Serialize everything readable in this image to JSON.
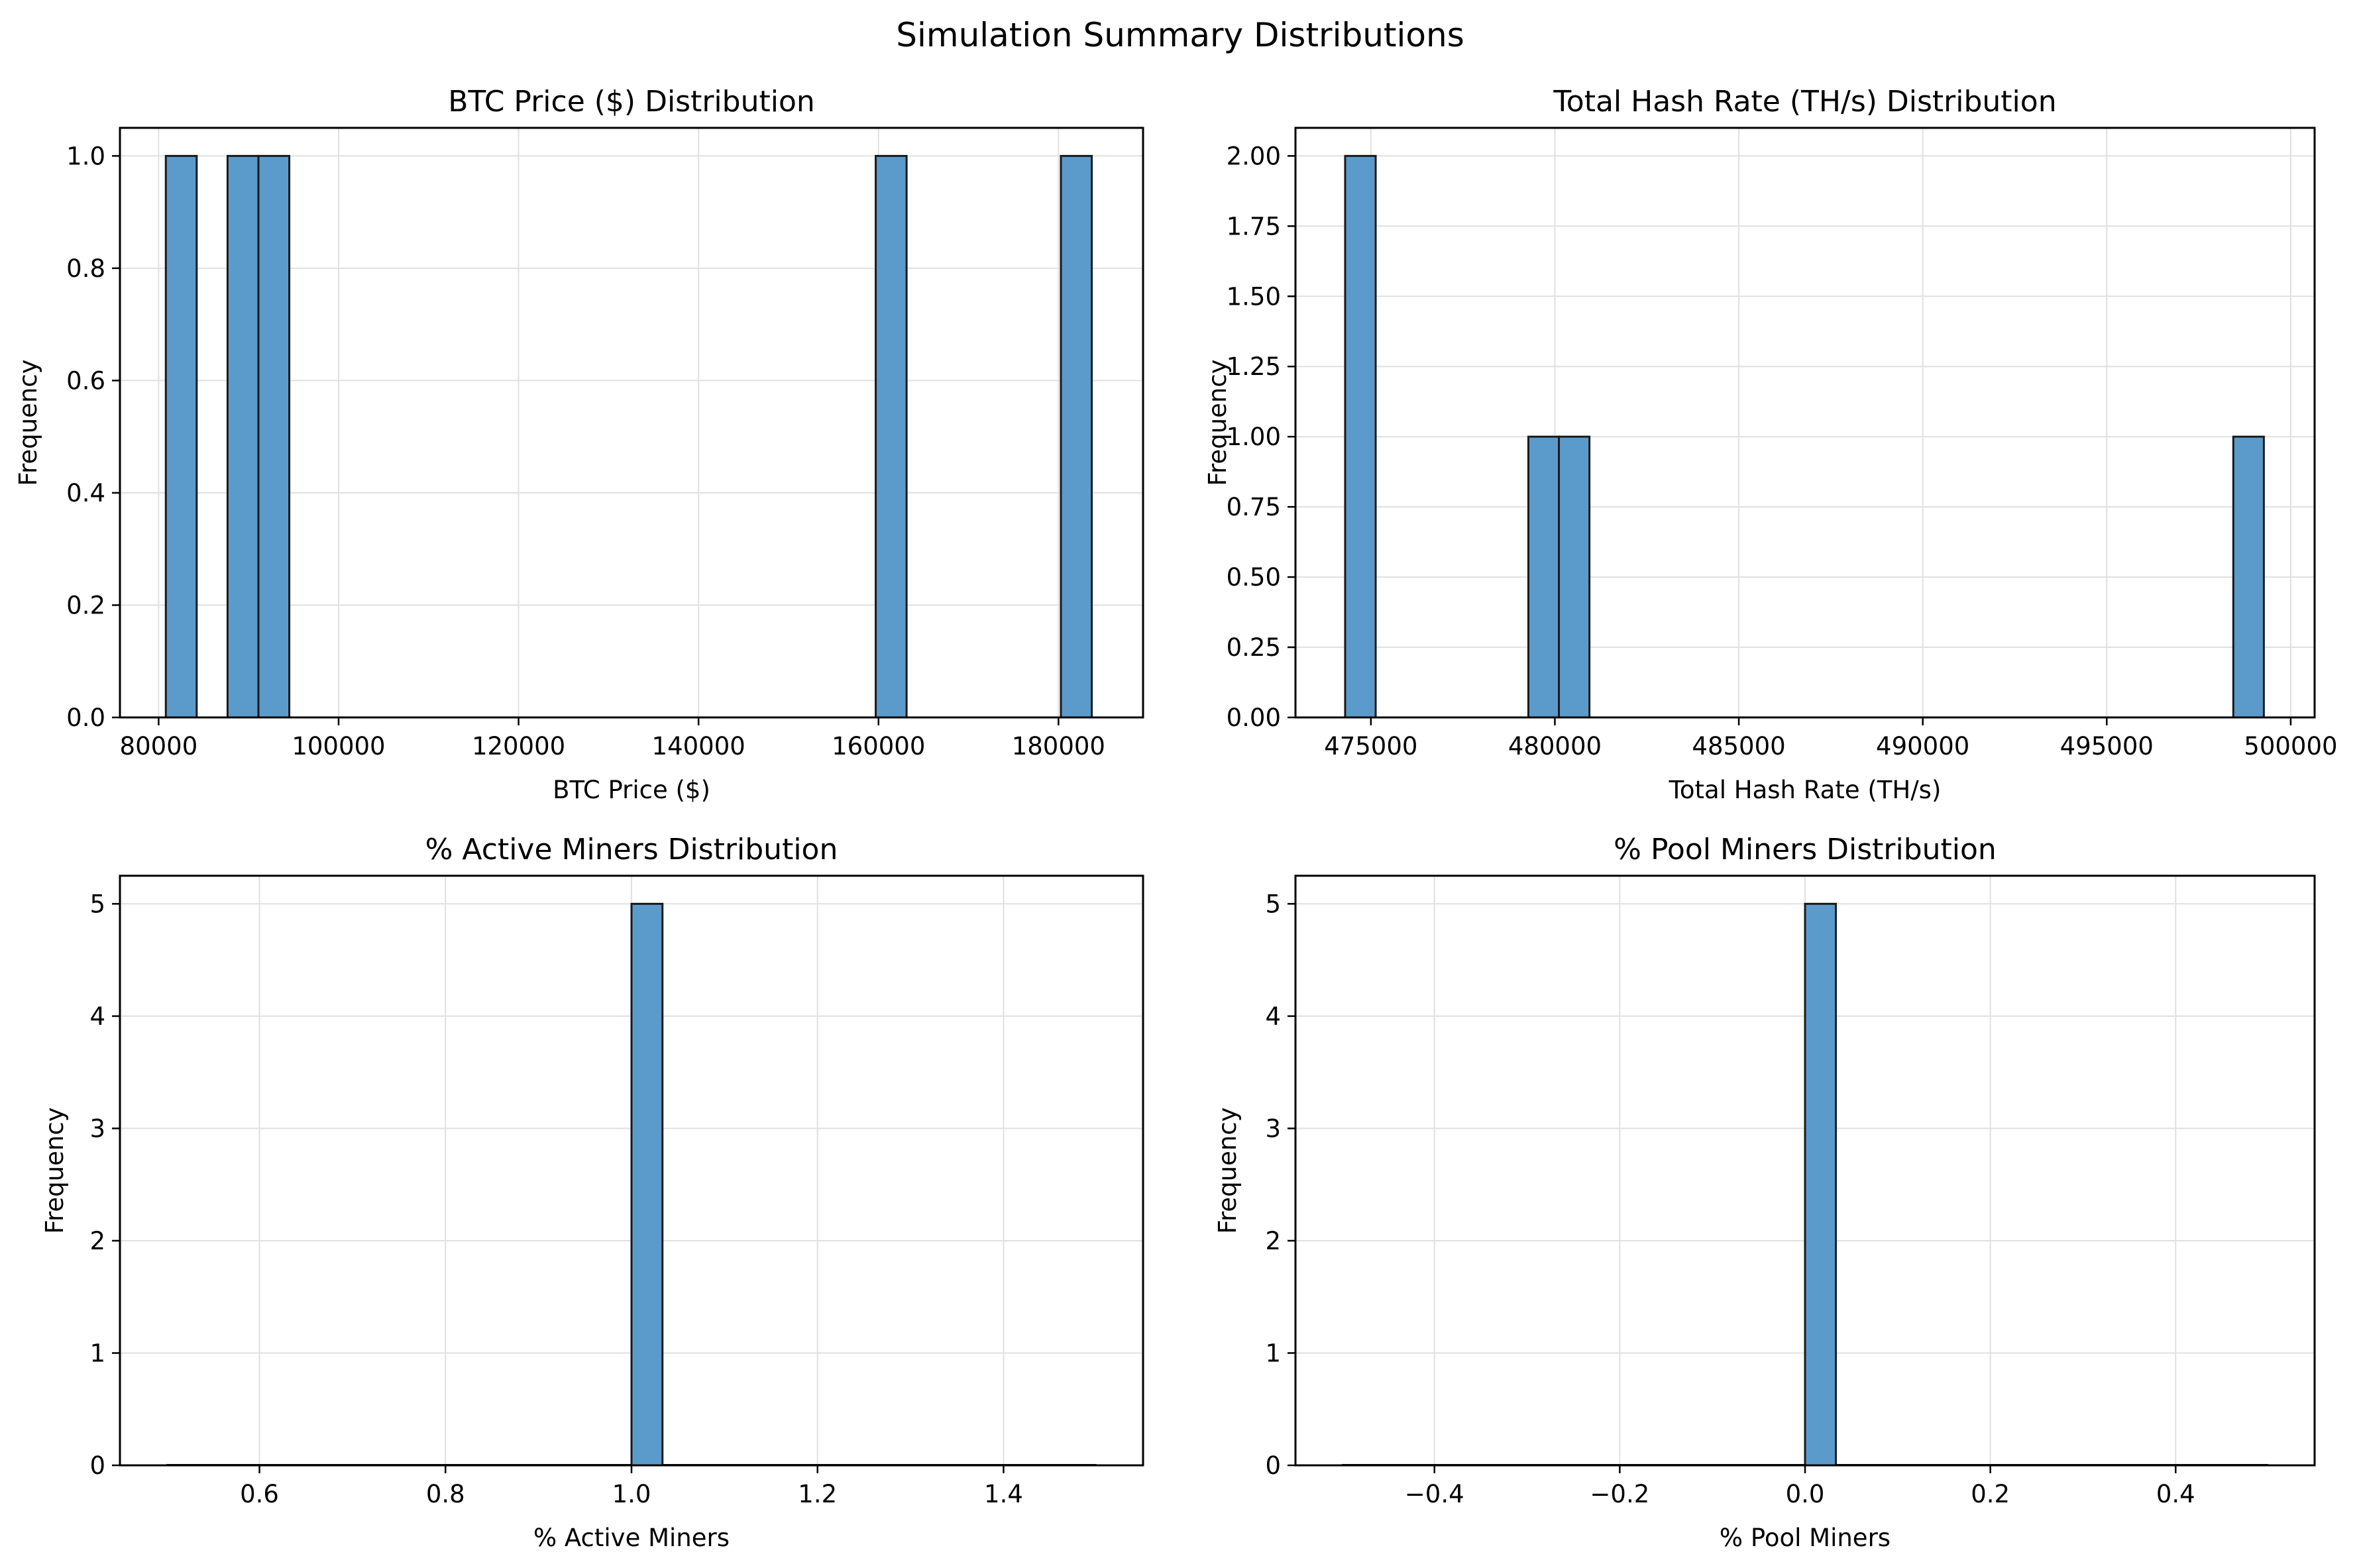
{
  "figure": {
    "title": "Simulation Summary Distributions",
    "bar_color": "#5b9bcc",
    "edge_color": "#1a1a1a",
    "grid_color": "#e0e0e0"
  },
  "chart_data": [
    {
      "type": "bar",
      "title": "BTC Price ($) Distribution",
      "xlabel": "BTC Price ($)",
      "ylabel": "Frequency",
      "xlim": [
        75700,
        189400
      ],
      "ylim": [
        0,
        1.05
      ],
      "xticks": [
        80000,
        100000,
        120000,
        140000,
        160000,
        180000
      ],
      "xtick_labels": [
        "80000",
        "100000",
        "120000",
        "140000",
        "160000",
        "180000"
      ],
      "yticks": [
        0,
        0.2,
        0.4,
        0.6,
        0.8,
        1.0
      ],
      "ytick_labels": [
        "0.0",
        "0.2",
        "0.4",
        "0.6",
        "0.8",
        "1.0"
      ],
      "grid": true,
      "bins": [
        {
          "x0": 80800,
          "x1": 84230,
          "count": 1
        },
        {
          "x0": 87660,
          "x1": 91090,
          "count": 1
        },
        {
          "x0": 91090,
          "x1": 94520,
          "count": 1
        },
        {
          "x0": 159690,
          "x1": 163120,
          "count": 1
        },
        {
          "x0": 180270,
          "x1": 183700,
          "count": 1
        }
      ]
    },
    {
      "type": "bar",
      "title": "Total Hash Rate (TH/s) Distribution",
      "xlabel": "Total Hash Rate (TH/s)",
      "ylabel": "Frequency",
      "xlim": [
        472950,
        500650
      ],
      "ylim": [
        0,
        2.1
      ],
      "xticks": [
        475000,
        480000,
        485000,
        490000,
        495000,
        500000
      ],
      "xtick_labels": [
        "475000",
        "480000",
        "485000",
        "490000",
        "495000",
        "500000"
      ],
      "yticks": [
        0,
        0.25,
        0.5,
        0.75,
        1.0,
        1.25,
        1.5,
        1.75,
        2.0
      ],
      "ytick_labels": [
        "0.00",
        "0.25",
        "0.50",
        "0.75",
        "1.00",
        "1.25",
        "1.50",
        "1.75",
        "2.00"
      ],
      "grid": true,
      "bins": [
        {
          "x0": 474300,
          "x1": 475130,
          "count": 2
        },
        {
          "x0": 479280,
          "x1": 480110,
          "count": 1
        },
        {
          "x0": 480110,
          "x1": 480940,
          "count": 1
        },
        {
          "x0": 498440,
          "x1": 499270,
          "count": 1
        }
      ]
    },
    {
      "type": "bar",
      "title": "% Active Miners Distribution",
      "xlabel": "% Active Miners",
      "ylabel": "Frequency",
      "xlim": [
        0.45,
        1.55
      ],
      "ylim": [
        0,
        5.25
      ],
      "xticks": [
        0.6,
        0.8,
        1.0,
        1.2,
        1.4
      ],
      "xtick_labels": [
        "0.6",
        "0.8",
        "1.0",
        "1.2",
        "1.4"
      ],
      "yticks": [
        0,
        1,
        2,
        3,
        4,
        5
      ],
      "ytick_labels": [
        "0",
        "1",
        "2",
        "3",
        "4",
        "5"
      ],
      "grid": true,
      "baseline": [
        0.5,
        1.5
      ],
      "bins": [
        {
          "x0": 1.0,
          "x1": 1.0333,
          "count": 5
        }
      ]
    },
    {
      "type": "bar",
      "title": "% Pool Miners Distribution",
      "xlabel": "% Pool Miners",
      "ylabel": "Frequency",
      "xlim": [
        -0.55,
        0.55
      ],
      "ylim": [
        0,
        5.25
      ],
      "xticks": [
        -0.4,
        -0.2,
        0.0,
        0.2,
        0.4
      ],
      "xtick_labels": [
        "−0.4",
        "−0.2",
        "0.0",
        "0.2",
        "0.4"
      ],
      "yticks": [
        0,
        1,
        2,
        3,
        4,
        5
      ],
      "ytick_labels": [
        "0",
        "1",
        "2",
        "3",
        "4",
        "5"
      ],
      "grid": true,
      "baseline": [
        -0.5,
        0.5
      ],
      "bins": [
        {
          "x0": 0.0,
          "x1": 0.0333,
          "count": 5
        }
      ]
    }
  ]
}
